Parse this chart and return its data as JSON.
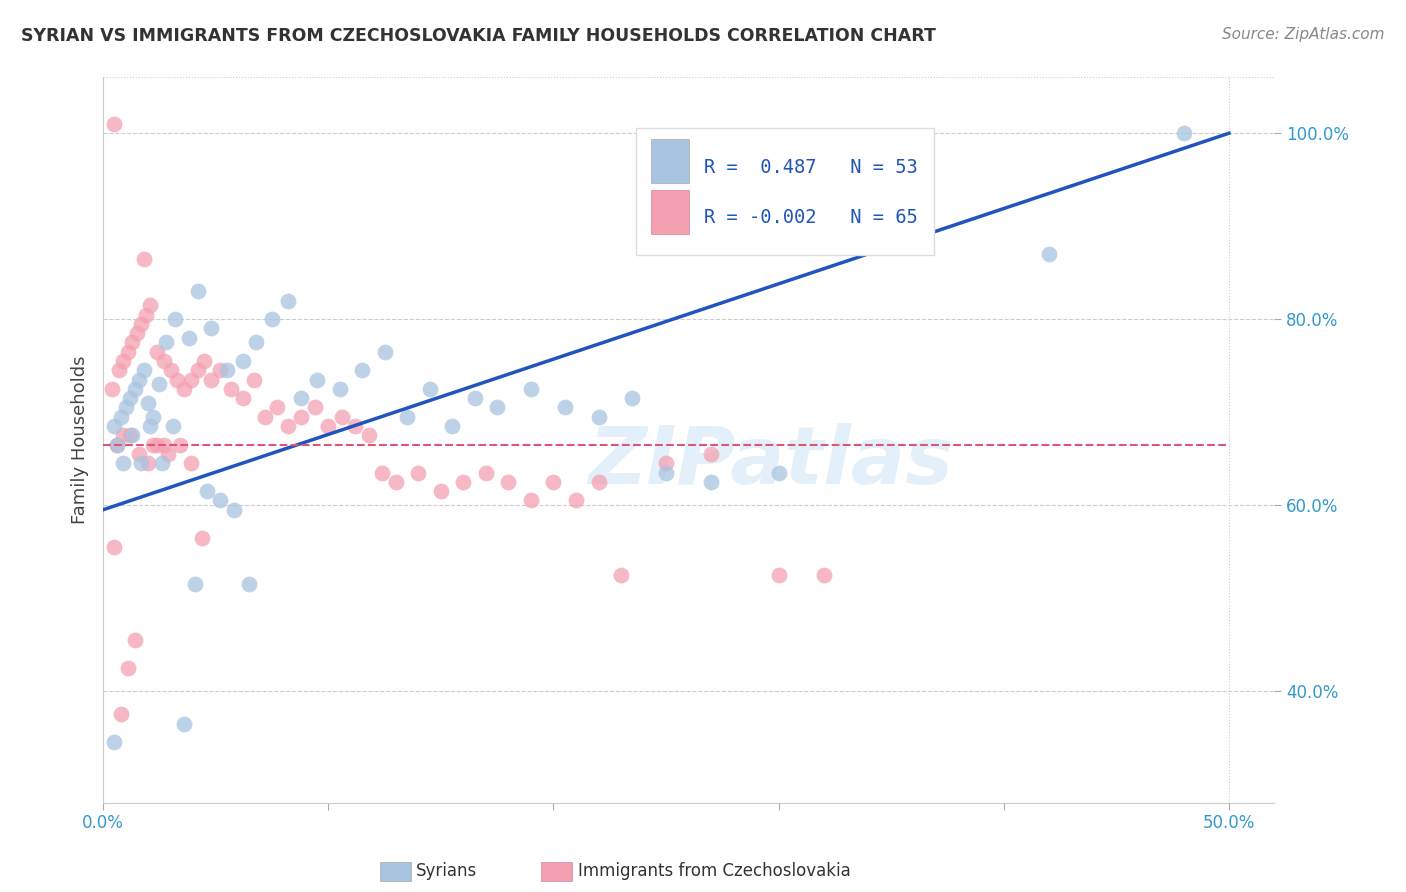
{
  "title": "SYRIAN VS IMMIGRANTS FROM CZECHOSLOVAKIA FAMILY HOUSEHOLDS CORRELATION CHART",
  "source": "Source: ZipAtlas.com",
  "ylabel": "Family Households",
  "watermark": "ZIPatlas",
  "xlim": [
    0.0,
    0.52
  ],
  "ylim": [
    0.28,
    1.06
  ],
  "x_ticks": [
    0.0,
    0.1,
    0.2,
    0.3,
    0.4,
    0.5
  ],
  "x_tick_labels": [
    "0.0%",
    "",
    "",
    "",
    "",
    "50.0%"
  ],
  "y_ticks": [
    0.4,
    0.6,
    0.8,
    1.0
  ],
  "y_tick_labels": [
    "40.0%",
    "60.0%",
    "80.0%",
    "100.0%"
  ],
  "legend_r_blue": "0.487",
  "legend_n_blue": "53",
  "legend_r_pink": "-0.002",
  "legend_n_pink": "65",
  "blue_color": "#a8c4e0",
  "pink_color": "#f4a0b0",
  "trend_blue": "#2255bb",
  "trend_pink": "#dd5577",
  "background": "#ffffff",
  "grid_color": "#cccccc",
  "syrians_x": [
    0.005,
    0.008,
    0.01,
    0.012,
    0.014,
    0.016,
    0.018,
    0.02,
    0.022,
    0.025,
    0.028,
    0.032,
    0.038,
    0.042,
    0.048,
    0.055,
    0.062,
    0.068,
    0.075,
    0.082,
    0.088,
    0.095,
    0.105,
    0.115,
    0.125,
    0.135,
    0.145,
    0.155,
    0.165,
    0.175,
    0.19,
    0.205,
    0.22,
    0.235,
    0.25,
    0.27,
    0.3,
    0.006,
    0.009,
    0.013,
    0.017,
    0.021,
    0.026,
    0.031,
    0.036,
    0.041,
    0.046,
    0.052,
    0.058,
    0.065,
    0.42,
    0.48,
    0.005
  ],
  "syrians_y": [
    0.685,
    0.695,
    0.705,
    0.715,
    0.725,
    0.735,
    0.745,
    0.71,
    0.695,
    0.73,
    0.775,
    0.8,
    0.78,
    0.83,
    0.79,
    0.745,
    0.755,
    0.775,
    0.8,
    0.82,
    0.715,
    0.735,
    0.725,
    0.745,
    0.765,
    0.695,
    0.725,
    0.685,
    0.715,
    0.705,
    0.725,
    0.705,
    0.695,
    0.715,
    0.635,
    0.625,
    0.635,
    0.665,
    0.645,
    0.675,
    0.645,
    0.685,
    0.645,
    0.685,
    0.365,
    0.515,
    0.615,
    0.605,
    0.595,
    0.515,
    0.87,
    1.0,
    0.345
  ],
  "czech_x": [
    0.004,
    0.007,
    0.009,
    0.011,
    0.013,
    0.015,
    0.017,
    0.019,
    0.021,
    0.024,
    0.027,
    0.03,
    0.033,
    0.036,
    0.039,
    0.042,
    0.045,
    0.048,
    0.052,
    0.057,
    0.062,
    0.067,
    0.072,
    0.077,
    0.082,
    0.088,
    0.094,
    0.1,
    0.106,
    0.112,
    0.118,
    0.124,
    0.13,
    0.14,
    0.15,
    0.16,
    0.17,
    0.18,
    0.19,
    0.2,
    0.21,
    0.22,
    0.23,
    0.25,
    0.27,
    0.3,
    0.006,
    0.009,
    0.012,
    0.016,
    0.02,
    0.024,
    0.029,
    0.034,
    0.039,
    0.044,
    0.005,
    0.008,
    0.011,
    0.014,
    0.018,
    0.022,
    0.027,
    0.32,
    0.005
  ],
  "czech_y": [
    0.725,
    0.745,
    0.755,
    0.765,
    0.775,
    0.785,
    0.795,
    0.805,
    0.815,
    0.765,
    0.755,
    0.745,
    0.735,
    0.725,
    0.735,
    0.745,
    0.755,
    0.735,
    0.745,
    0.725,
    0.715,
    0.735,
    0.695,
    0.705,
    0.685,
    0.695,
    0.705,
    0.685,
    0.695,
    0.685,
    0.675,
    0.635,
    0.625,
    0.635,
    0.615,
    0.625,
    0.635,
    0.625,
    0.605,
    0.625,
    0.605,
    0.625,
    0.525,
    0.645,
    0.655,
    0.525,
    0.665,
    0.675,
    0.675,
    0.655,
    0.645,
    0.665,
    0.655,
    0.665,
    0.645,
    0.565,
    0.555,
    0.375,
    0.425,
    0.455,
    0.865,
    0.665,
    0.665,
    0.525,
    1.01
  ],
  "blue_trendline_x": [
    0.0,
    0.5
  ],
  "blue_trendline_y": [
    0.595,
    1.0
  ],
  "pink_trendline_x": [
    0.0,
    0.5
  ],
  "pink_trendline_y": [
    0.665,
    0.665
  ]
}
